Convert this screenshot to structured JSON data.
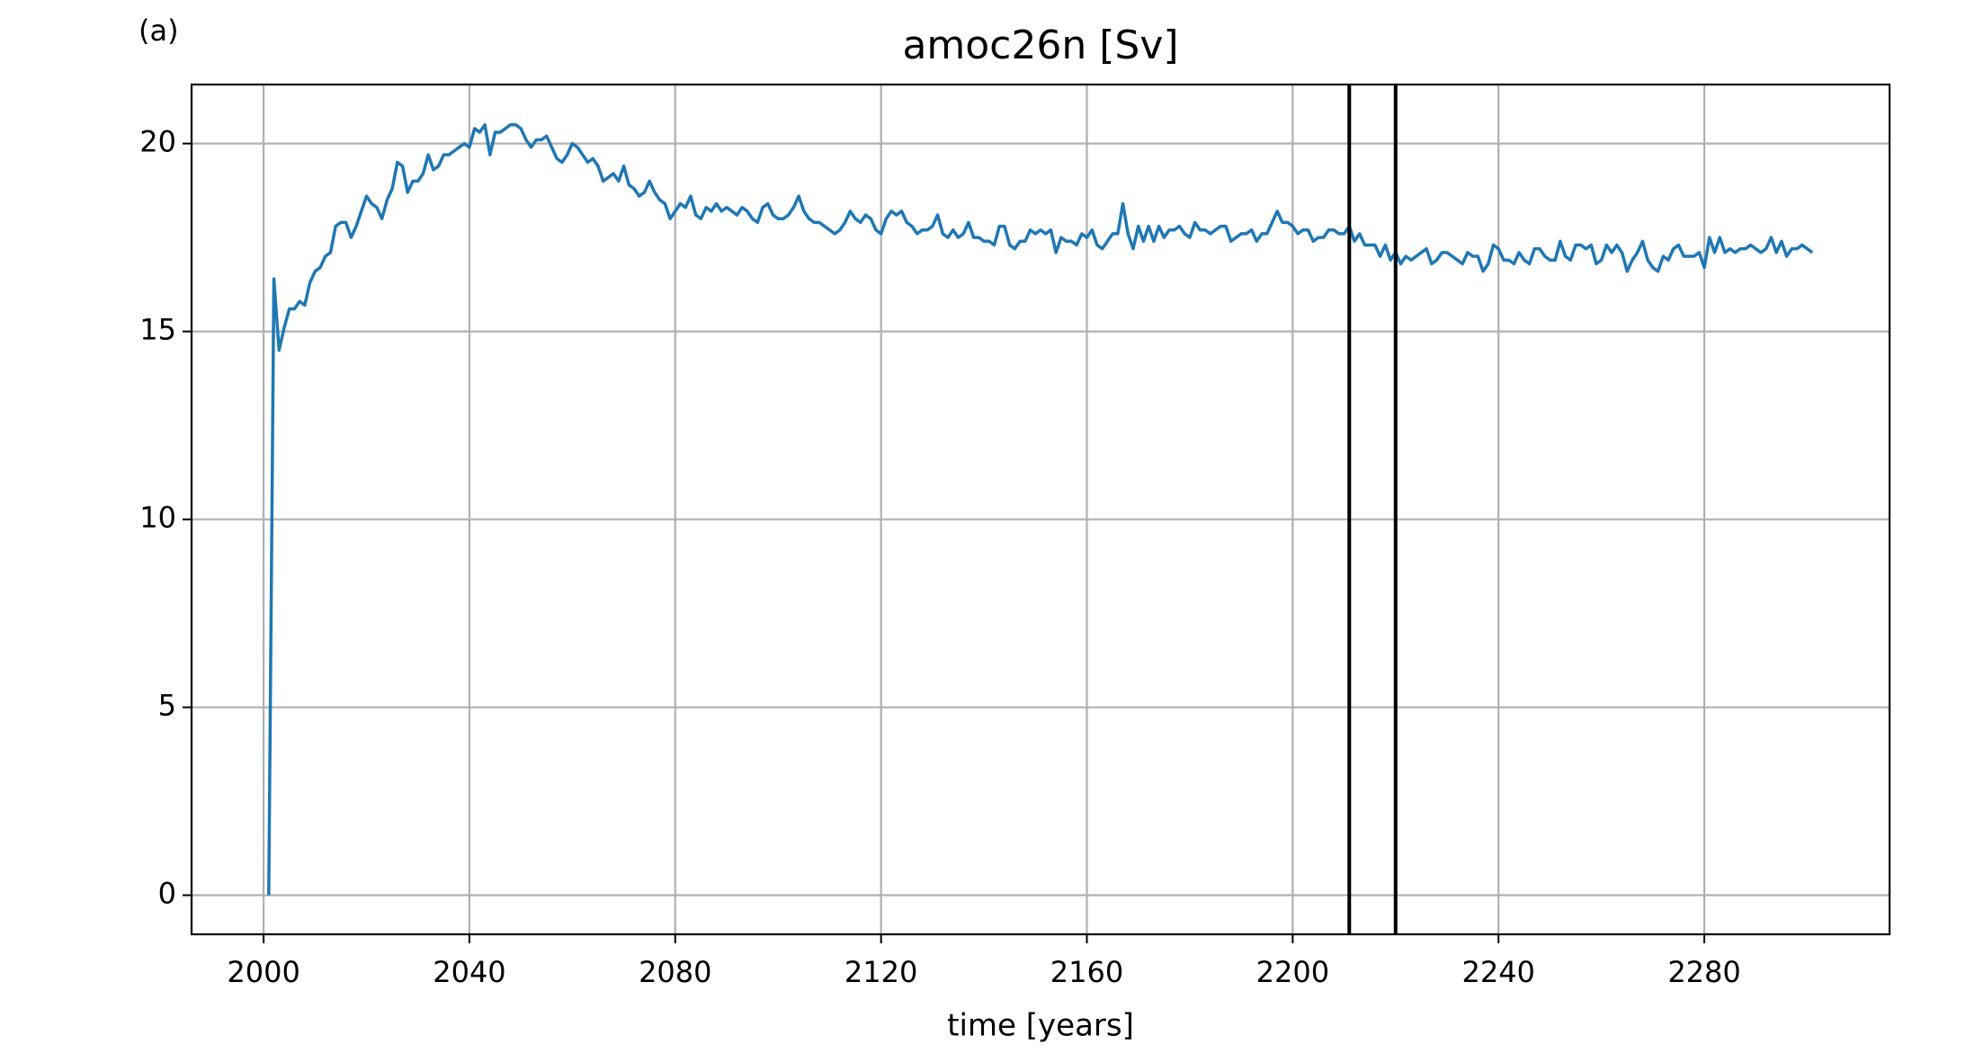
{
  "chart_data": {
    "type": "line",
    "panel_label": "(a)",
    "title": "amoc26n [Sv]",
    "x_label": "time [years]",
    "color": "#1f77b4",
    "grid": true,
    "xlim": [
      1986,
      2316
    ],
    "ylim": [
      -1.04,
      21.57
    ],
    "xticks": [
      2000,
      2040,
      2080,
      2120,
      2160,
      2200,
      2240,
      2280
    ],
    "yticks": [
      0,
      5,
      10,
      15,
      20
    ],
    "vlines": [
      2211,
      2220
    ],
    "vline_color": "#000000",
    "x": [
      2001,
      2002,
      2003,
      2004,
      2005,
      2006,
      2007,
      2008,
      2009,
      2010,
      2011,
      2012,
      2013,
      2014,
      2015,
      2016,
      2017,
      2018,
      2019,
      2020,
      2021,
      2022,
      2023,
      2024,
      2025,
      2026,
      2027,
      2028,
      2029,
      2030,
      2031,
      2032,
      2033,
      2034,
      2035,
      2036,
      2037,
      2038,
      2039,
      2040,
      2041,
      2042,
      2043,
      2044,
      2045,
      2046,
      2047,
      2048,
      2049,
      2050,
      2051,
      2052,
      2053,
      2054,
      2055,
      2056,
      2057,
      2058,
      2059,
      2060,
      2061,
      2062,
      2063,
      2064,
      2065,
      2066,
      2067,
      2068,
      2069,
      2070,
      2071,
      2072,
      2073,
      2074,
      2075,
      2076,
      2077,
      2078,
      2079,
      2080,
      2081,
      2082,
      2083,
      2084,
      2085,
      2086,
      2087,
      2088,
      2089,
      2090,
      2091,
      2092,
      2093,
      2094,
      2095,
      2096,
      2097,
      2098,
      2099,
      2100,
      2101,
      2102,
      2103,
      2104,
      2105,
      2106,
      2107,
      2108,
      2109,
      2110,
      2111,
      2112,
      2113,
      2114,
      2115,
      2116,
      2117,
      2118,
      2119,
      2120,
      2121,
      2122,
      2123,
      2124,
      2125,
      2126,
      2127,
      2128,
      2129,
      2130,
      2131,
      2132,
      2133,
      2134,
      2135,
      2136,
      2137,
      2138,
      2139,
      2140,
      2141,
      2142,
      2143,
      2144,
      2145,
      2146,
      2147,
      2148,
      2149,
      2150,
      2151,
      2152,
      2153,
      2154,
      2155,
      2156,
      2157,
      2158,
      2159,
      2160,
      2161,
      2162,
      2163,
      2164,
      2165,
      2166,
      2167,
      2168,
      2169,
      2170,
      2171,
      2172,
      2173,
      2174,
      2175,
      2176,
      2177,
      2178,
      2179,
      2180,
      2181,
      2182,
      2183,
      2184,
      2185,
      2186,
      2187,
      2188,
      2189,
      2190,
      2191,
      2192,
      2193,
      2194,
      2195,
      2196,
      2197,
      2198,
      2199,
      2200,
      2201,
      2202,
      2203,
      2204,
      2205,
      2206,
      2207,
      2208,
      2209,
      2210,
      2211,
      2212,
      2213,
      2214,
      2215,
      2216,
      2217,
      2218,
      2219,
      2220,
      2221,
      2222,
      2223,
      2224,
      2225,
      2226,
      2227,
      2228,
      2229,
      2230,
      2231,
      2232,
      2233,
      2234,
      2235,
      2236,
      2237,
      2238,
      2239,
      2240,
      2241,
      2242,
      2243,
      2244,
      2245,
      2246,
      2247,
      2248,
      2249,
      2250,
      2251,
      2252,
      2253,
      2254,
      2255,
      2256,
      2257,
      2258,
      2259,
      2260,
      2261,
      2262,
      2263,
      2264,
      2265,
      2266,
      2267,
      2268,
      2269,
      2270,
      2271,
      2272,
      2273,
      2274,
      2275,
      2276,
      2277,
      2278,
      2279,
      2280,
      2281,
      2282,
      2283,
      2284,
      2285,
      2286,
      2287,
      2288,
      2289,
      2290,
      2291,
      2292,
      2293,
      2294,
      2295,
      2296,
      2297,
      2298,
      2299,
      2300,
      2301
    ],
    "values": [
      0,
      16.4,
      14.5,
      15.1,
      15.6,
      15.6,
      15.8,
      15.7,
      16.3,
      16.6,
      16.7,
      17.0,
      17.1,
      17.8,
      17.9,
      17.9,
      17.5,
      17.8,
      18.2,
      18.6,
      18.4,
      18.3,
      18.0,
      18.5,
      18.8,
      19.5,
      19.4,
      18.7,
      19.0,
      19.0,
      19.2,
      19.7,
      19.3,
      19.4,
      19.7,
      19.7,
      19.8,
      19.9,
      20.0,
      19.9,
      20.4,
      20.3,
      20.5,
      19.7,
      20.3,
      20.3,
      20.4,
      20.5,
      20.5,
      20.4,
      20.1,
      19.9,
      20.1,
      20.1,
      20.2,
      19.9,
      19.6,
      19.5,
      19.7,
      20.0,
      19.9,
      19.7,
      19.5,
      19.6,
      19.4,
      19.0,
      19.1,
      19.2,
      19.0,
      19.4,
      18.9,
      18.8,
      18.6,
      18.7,
      19.0,
      18.7,
      18.5,
      18.4,
      18.0,
      18.2,
      18.4,
      18.3,
      18.6,
      18.1,
      18.0,
      18.3,
      18.2,
      18.4,
      18.2,
      18.3,
      18.2,
      18.1,
      18.3,
      18.2,
      18.0,
      17.9,
      18.3,
      18.4,
      18.1,
      18.0,
      18.0,
      18.1,
      18.3,
      18.6,
      18.2,
      18.0,
      17.9,
      17.9,
      17.8,
      17.7,
      17.6,
      17.7,
      17.9,
      18.2,
      18.0,
      17.9,
      18.1,
      18.0,
      17.7,
      17.6,
      18.0,
      18.2,
      18.1,
      18.2,
      17.9,
      17.8,
      17.6,
      17.7,
      17.7,
      17.8,
      18.1,
      17.6,
      17.5,
      17.7,
      17.5,
      17.6,
      17.9,
      17.5,
      17.5,
      17.4,
      17.4,
      17.3,
      17.8,
      17.8,
      17.3,
      17.2,
      17.4,
      17.4,
      17.7,
      17.6,
      17.7,
      17.6,
      17.7,
      17.1,
      17.5,
      17.4,
      17.4,
      17.3,
      17.6,
      17.5,
      17.7,
      17.3,
      17.2,
      17.4,
      17.6,
      17.6,
      18.4,
      17.6,
      17.2,
      17.8,
      17.4,
      17.8,
      17.4,
      17.8,
      17.5,
      17.7,
      17.7,
      17.8,
      17.6,
      17.5,
      17.9,
      17.7,
      17.7,
      17.6,
      17.7,
      17.8,
      17.8,
      17.4,
      17.5,
      17.6,
      17.6,
      17.7,
      17.4,
      17.6,
      17.6,
      17.9,
      18.2,
      17.9,
      17.9,
      17.8,
      17.6,
      17.7,
      17.7,
      17.4,
      17.5,
      17.5,
      17.7,
      17.7,
      17.6,
      17.6,
      17.8,
      17.4,
      17.6,
      17.3,
      17.3,
      17.3,
      17.0,
      17.3,
      16.9,
      17.1,
      16.8,
      17.0,
      16.9,
      17.0,
      17.1,
      17.2,
      16.8,
      16.9,
      17.1,
      17.1,
      17.0,
      16.9,
      16.8,
      17.1,
      17.0,
      17.0,
      16.6,
      16.8,
      17.3,
      17.2,
      16.9,
      16.9,
      16.8,
      17.1,
      16.9,
      16.8,
      17.2,
      17.2,
      17.0,
      16.9,
      16.9,
      17.4,
      17.0,
      16.9,
      17.3,
      17.3,
      17.2,
      17.3,
      16.8,
      16.9,
      17.3,
      17.1,
      17.3,
      17.1,
      16.6,
      16.9,
      17.1,
      17.4,
      16.9,
      16.7,
      16.6,
      17.0,
      16.9,
      17.2,
      17.3,
      17.0,
      17.0,
      17.0,
      17.1,
      16.7,
      17.5,
      17.1,
      17.5,
      17.1,
      17.2,
      17.1,
      17.2,
      17.2,
      17.3,
      17.2,
      17.1,
      17.2,
      17.5,
      17.1,
      17.4,
      17.0,
      17.2,
      17.2,
      17.3,
      17.2,
      17.1
    ]
  }
}
